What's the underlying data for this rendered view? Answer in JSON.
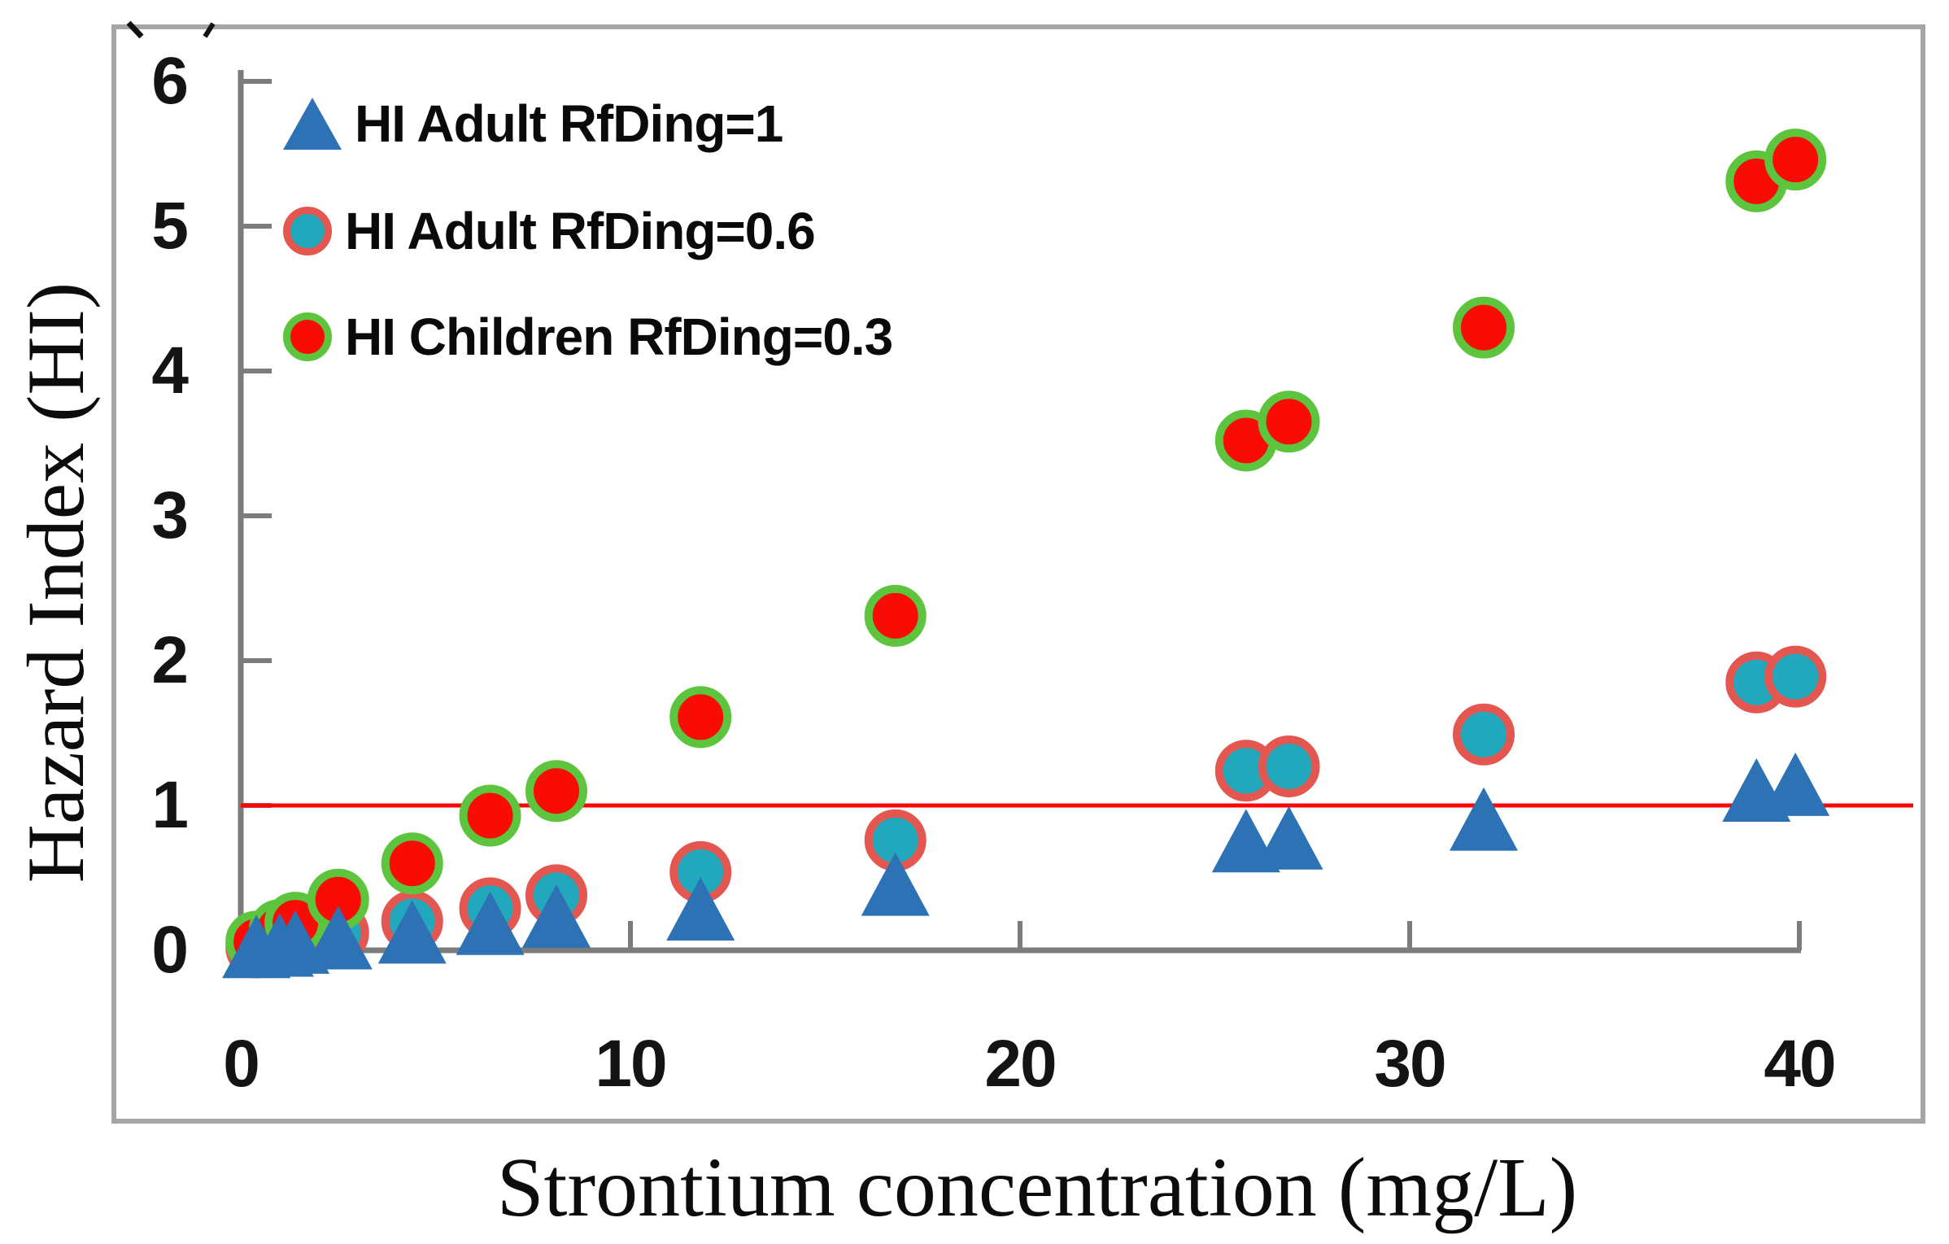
{
  "figure": {
    "background": "#ffffff",
    "frame_color": "#a5a5a5",
    "axis_color": "#7c7c7c",
    "tick_label_color": "#141414",
    "text_color": "#0a0a0a"
  },
  "chart_data": {
    "type": "scatter",
    "title": "",
    "xlabel": "Strontium concentration (mg/L)",
    "ylabel": "Hazard Index (HI)",
    "xlim": [
      0,
      43
    ],
    "ylim": [
      0,
      6.4
    ],
    "x_ticks": [
      0,
      10,
      20,
      30,
      40
    ],
    "y_ticks": [
      0,
      1,
      2,
      3,
      4,
      5,
      6
    ],
    "grid": false,
    "legend_position": "top-left",
    "threshold_line": {
      "y": 1,
      "color": "#fb0505"
    },
    "x": [
      0.4,
      1.0,
      1.4,
      2.5,
      4.4,
      6.4,
      8.1,
      11.8,
      16.8,
      25.8,
      26.9,
      31.9,
      38.9,
      39.9
    ],
    "series": [
      {
        "key": "hi-adult-rfding-1",
        "label": "HI Adult RfDing=1",
        "marker": "triangle",
        "fill": "#2e72b6",
        "rim": "#2e72b6",
        "values": [
          0.01,
          0.02,
          0.04,
          0.07,
          0.11,
          0.17,
          0.22,
          0.27,
          0.44,
          0.74,
          0.76,
          0.89,
          1.09,
          1.13
        ]
      },
      {
        "key": "hi-adult-rfding-0-6",
        "label": "HI Adult RfDing=0.6",
        "marker": "circle",
        "fill": "#22a8bd",
        "rim": "#e35750",
        "values": [
          0.02,
          0.05,
          0.07,
          0.12,
          0.2,
          0.29,
          0.38,
          0.54,
          0.76,
          1.24,
          1.27,
          1.49,
          1.85,
          1.89
        ]
      },
      {
        "key": "hi-children-rfding-0-3",
        "label": "HI Children RfDing=0.3",
        "marker": "circle",
        "fill": "#fa0b05",
        "rim": "#5dc53d",
        "values": [
          0.06,
          0.14,
          0.19,
          0.35,
          0.6,
          0.93,
          1.1,
          1.61,
          2.31,
          3.52,
          3.65,
          4.3,
          5.31,
          5.46
        ]
      }
    ]
  }
}
